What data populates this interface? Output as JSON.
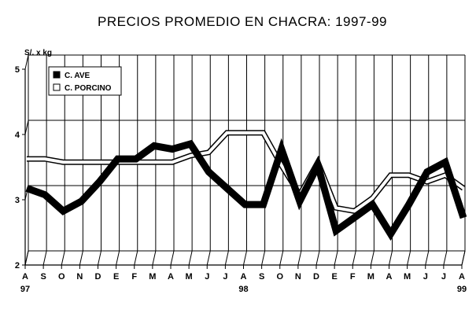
{
  "chart_data": {
    "type": "line",
    "title": "PRECIOS PROMEDIO EN CHACRA: 1997-99",
    "ylabel": "S/. x kg",
    "xlabel": "",
    "ylim": [
      2,
      5
    ],
    "yticks": [
      "2",
      "3",
      "4",
      "5"
    ],
    "categories": [
      "A",
      "S",
      "O",
      "N",
      "D",
      "E",
      "F",
      "M",
      "A",
      "M",
      "J",
      "J",
      "A",
      "S",
      "O",
      "N",
      "D",
      "E",
      "F",
      "M",
      "A",
      "M",
      "J",
      "J",
      "A"
    ],
    "year_labels": [
      {
        "index": 0,
        "label": "97"
      },
      {
        "index": 12,
        "label": "98"
      },
      {
        "index": 24,
        "label": "99"
      }
    ],
    "grid": true,
    "legend_position": "top-left",
    "series": [
      {
        "name": "C. AVE",
        "color": "#000000",
        "marker": "filled-square",
        "values": [
          3.2,
          3.1,
          2.85,
          3.0,
          3.3,
          3.65,
          3.65,
          3.85,
          3.8,
          3.88,
          3.45,
          3.2,
          2.95,
          2.95,
          3.8,
          3.0,
          3.55,
          2.55,
          2.75,
          2.95,
          2.5,
          2.95,
          3.45,
          3.6,
          2.75
        ]
      },
      {
        "name": "C. PORCINO",
        "color": "#ffffff",
        "marker": "hollow-square",
        "values": [
          3.65,
          3.65,
          3.6,
          3.6,
          3.6,
          3.6,
          3.6,
          3.6,
          3.6,
          3.7,
          3.75,
          4.05,
          4.05,
          4.05,
          3.55,
          3.1,
          3.6,
          2.9,
          2.85,
          3.05,
          3.4,
          3.4,
          3.3,
          3.4,
          3.2
        ]
      }
    ]
  }
}
